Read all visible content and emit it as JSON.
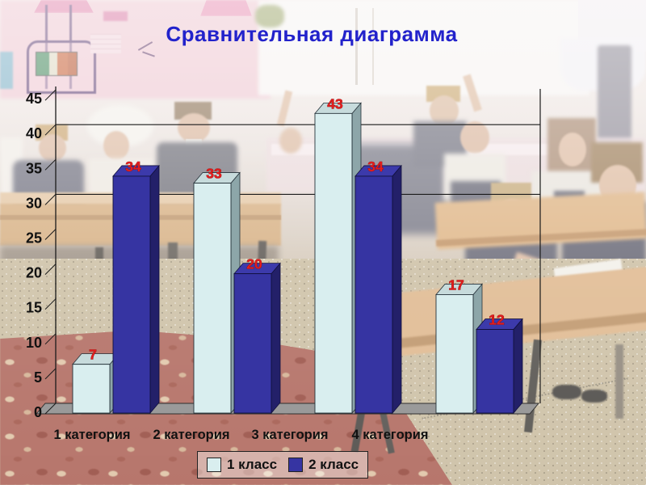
{
  "slide": {
    "title": "Сравнительная диаграмма",
    "title_color": "#2222cb"
  },
  "chart_data": {
    "type": "bar",
    "style": "3d-clustered-column",
    "title": "Сравнительная диаграмма",
    "categories": [
      "1 категория",
      "2 категория",
      "3 категория",
      "4 категория"
    ],
    "series": [
      {
        "name": "1 класс",
        "values": [
          7,
          33,
          43,
          17
        ],
        "front_color": "#d9eeef",
        "top_color": "#c7dbdc",
        "side_color": "#8da6a9",
        "edge_color": "#26323a"
      },
      {
        "name": "2 класс",
        "values": [
          34,
          20,
          34,
          12
        ],
        "front_color": "#3634a2",
        "top_color": "#3c3aab",
        "side_color": "#232069",
        "edge_color": "#11103d"
      }
    ],
    "value_axis": {
      "min": 0,
      "max": 45,
      "tick_step": 5,
      "tick_labels": [
        "0",
        "5",
        "10",
        "15",
        "20",
        "25",
        "30",
        "35",
        "40",
        "45"
      ]
    },
    "gridline_values": [
      30,
      40
    ],
    "data_labels": {
      "show": true,
      "color": "#e31d1d"
    },
    "legend": {
      "position": "bottom",
      "entries": [
        "1 класс",
        "2 класс"
      ]
    },
    "floor_color": "#9a9a9a",
    "axis_color": "#1b1b1b",
    "text_color": "#111111"
  }
}
